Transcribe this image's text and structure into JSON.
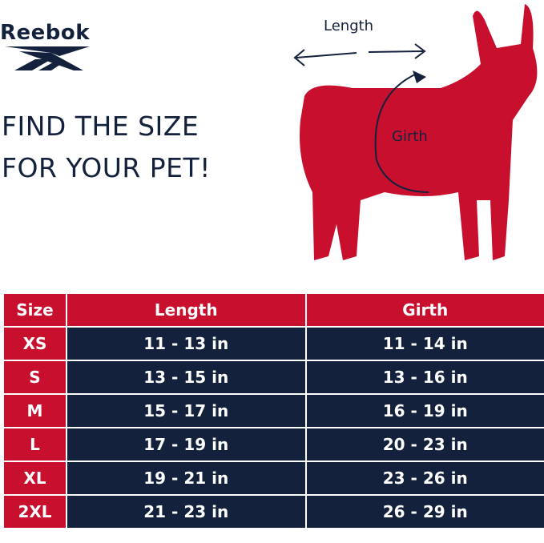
{
  "brand": {
    "name": "Reebok"
  },
  "headline": [
    "FIND THE SIZE",
    "FOR YOUR PET!"
  ],
  "diagram": {
    "length_label": "Length",
    "girth_label": "Girth",
    "dog_color": "#c8102e"
  },
  "colors": {
    "red": "#c8102e",
    "navy": "#14213d"
  },
  "table": {
    "headers": [
      "Size",
      "Length",
      "Girth"
    ],
    "rows": [
      {
        "size": "XS",
        "length": "11 - 13 in",
        "girth": "11 - 14 in"
      },
      {
        "size": "S",
        "length": "13 - 15 in",
        "girth": "13 - 16 in"
      },
      {
        "size": "M",
        "length": "15 - 17 in",
        "girth": "16 - 19 in"
      },
      {
        "size": "L",
        "length": "17 - 19 in",
        "girth": "20 - 23 in"
      },
      {
        "size": "XL",
        "length": "19 - 21 in",
        "girth": "23 - 26 in"
      },
      {
        "size": "2XL",
        "length": "21 - 23 in",
        "girth": "26 - 29 in"
      }
    ]
  }
}
